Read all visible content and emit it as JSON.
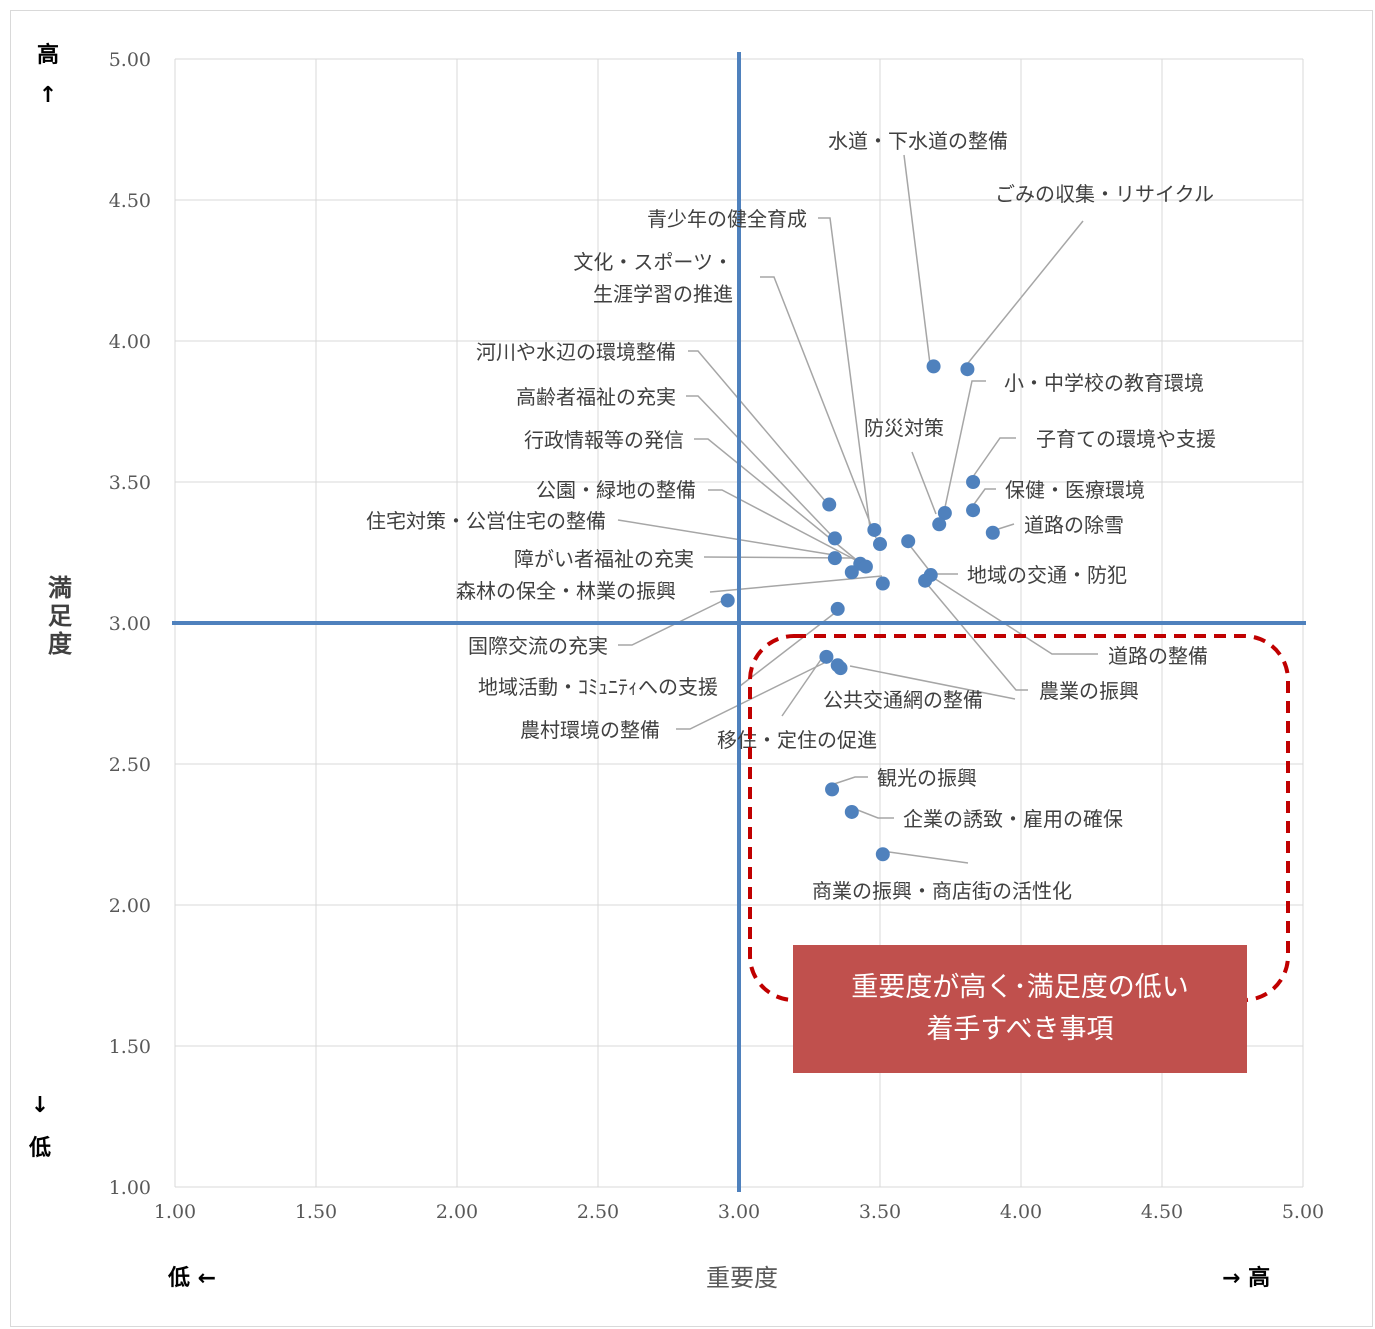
{
  "chart_data": {
    "type": "scatter",
    "xlabel": "重要度",
    "ylabel": "満足度",
    "xlim": [
      1.0,
      5.0
    ],
    "ylim": [
      1.0,
      5.0
    ],
    "xticks": [
      "1.00",
      "1.50",
      "2.00",
      "2.50",
      "3.00",
      "3.50",
      "4.00",
      "4.50",
      "5.00"
    ],
    "yticks": [
      "1.00",
      "1.50",
      "2.00",
      "2.50",
      "3.00",
      "3.50",
      "4.00",
      "4.50",
      "5.00"
    ],
    "grid": true,
    "quadrant_lines": {
      "x": 3.0,
      "y": 3.0
    },
    "x_low_label": "低 ←",
    "x_high_label": "→ 高",
    "y_high_label": "高",
    "y_high_arrow": "↑",
    "y_low_label": "低",
    "y_low_arrow": "↓",
    "callout": {
      "line1": "重要度が高く･満足度の低い",
      "line2": "着手すべき事項"
    },
    "points": [
      {
        "label": "水道・下水道の整備",
        "x": 3.69,
        "y": 3.91
      },
      {
        "label": "ごみの収集・リサイクル",
        "x": 3.81,
        "y": 3.9
      },
      {
        "label": "青少年の健全育成",
        "x": 3.48,
        "y": 3.33
      },
      {
        "label": "文化・スポーツ・生涯学習の推進",
        "x": 3.5,
        "y": 3.28
      },
      {
        "label": "河川や水辺の環境整備",
        "x": 3.32,
        "y": 3.42
      },
      {
        "label": "高齢者福祉の充実",
        "x": 3.34,
        "y": 3.3
      },
      {
        "label": "行政情報等の発信",
        "x": 3.43,
        "y": 3.21
      },
      {
        "label": "公園・緑地の整備",
        "x": 3.45,
        "y": 3.2
      },
      {
        "label": "住宅対策・公営住宅の整備",
        "x": 3.34,
        "y": 3.23
      },
      {
        "label": "障がい者福祉の充実",
        "x": 3.4,
        "y": 3.18
      },
      {
        "label": "森林の保全・林業の振興",
        "x": 3.51,
        "y": 3.14
      },
      {
        "label": "国際交流の充実",
        "x": 2.96,
        "y": 3.08
      },
      {
        "label": "地域活動・ｺﾐｭﾆﾃｨへの支援",
        "x": 3.35,
        "y": 3.05
      },
      {
        "label": "農村環境の整備",
        "x": 3.31,
        "y": 2.88
      },
      {
        "label": "移住・定住の促進",
        "x": 3.35,
        "y": 2.85
      },
      {
        "label": "小・中学校の教育環境",
        "x": 3.73,
        "y": 3.39
      },
      {
        "label": "防災対策",
        "x": 3.71,
        "y": 3.35
      },
      {
        "label": "子育ての環境や支援",
        "x": 3.83,
        "y": 3.5
      },
      {
        "label": "保健・医療環境",
        "x": 3.83,
        "y": 3.4
      },
      {
        "label": "道路の除雪",
        "x": 3.9,
        "y": 3.32
      },
      {
        "label": "地域の交通・防犯",
        "x": 3.6,
        "y": 3.29
      },
      {
        "label": "道路の整備",
        "x": 3.68,
        "y": 3.17
      },
      {
        "label": "農業の振興",
        "x": 3.66,
        "y": 3.15
      },
      {
        "label": "公共交通網の整備",
        "x": 3.36,
        "y": 2.84
      },
      {
        "label": "観光の振興",
        "x": 3.33,
        "y": 2.41
      },
      {
        "label": "企業の誘致・雇用の確保",
        "x": 3.4,
        "y": 2.33
      },
      {
        "label": "商業の振興・商店街の活性化",
        "x": 3.51,
        "y": 2.18
      }
    ]
  }
}
